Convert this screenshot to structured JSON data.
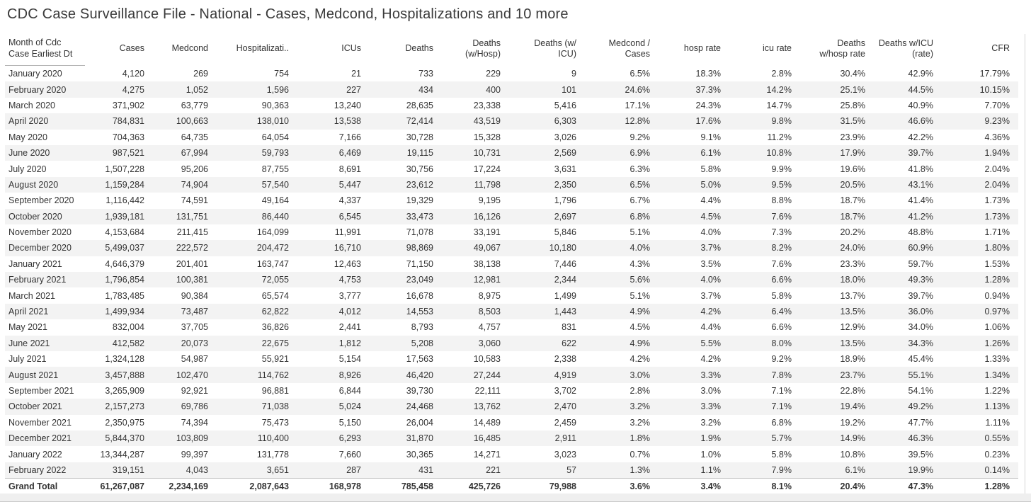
{
  "title": "CDC Case Surveillance File - National - Cases, Medcond, Hospitalizations and 10 more",
  "colors": {
    "row_banding": "#f3f3f3",
    "total_border": "#c4c4c4",
    "header_underline": "#b5b5b5",
    "text": "#333333",
    "title_text": "#3a3a3a"
  },
  "chart_data": {
    "type": "table",
    "title": "CDC Case Surveillance File - National - Cases, Medcond, Hospitalizations and 10 more",
    "columns": [
      "Month of Cdc\nCase Earliest Dt",
      "Cases",
      "Medcond",
      "Hospitalizati..",
      "ICUs",
      "Deaths",
      "Deaths\n(w/Hosp)",
      "Deaths (w/\nICU)",
      "Medcond /\nCases",
      "hosp rate",
      "icu rate",
      "Deaths\nw/hosp rate",
      "Deaths w/ICU\n(rate)",
      "CFR"
    ],
    "rows": [
      [
        "January 2020",
        "4,120",
        "269",
        "754",
        "21",
        "733",
        "229",
        "9",
        "6.5%",
        "18.3%",
        "2.8%",
        "30.4%",
        "42.9%",
        "17.79%"
      ],
      [
        "February 2020",
        "4,275",
        "1,052",
        "1,596",
        "227",
        "434",
        "400",
        "101",
        "24.6%",
        "37.3%",
        "14.2%",
        "25.1%",
        "44.5%",
        "10.15%"
      ],
      [
        "March 2020",
        "371,902",
        "63,779",
        "90,363",
        "13,240",
        "28,635",
        "23,338",
        "5,416",
        "17.1%",
        "24.3%",
        "14.7%",
        "25.8%",
        "40.9%",
        "7.70%"
      ],
      [
        "April 2020",
        "784,831",
        "100,663",
        "138,010",
        "13,538",
        "72,414",
        "43,519",
        "6,303",
        "12.8%",
        "17.6%",
        "9.8%",
        "31.5%",
        "46.6%",
        "9.23%"
      ],
      [
        "May 2020",
        "704,363",
        "64,735",
        "64,054",
        "7,166",
        "30,728",
        "15,328",
        "3,026",
        "9.2%",
        "9.1%",
        "11.2%",
        "23.9%",
        "42.2%",
        "4.36%"
      ],
      [
        "June 2020",
        "987,521",
        "67,994",
        "59,793",
        "6,469",
        "19,115",
        "10,731",
        "2,569",
        "6.9%",
        "6.1%",
        "10.8%",
        "17.9%",
        "39.7%",
        "1.94%"
      ],
      [
        "July 2020",
        "1,507,228",
        "95,206",
        "87,755",
        "8,691",
        "30,756",
        "17,224",
        "3,631",
        "6.3%",
        "5.8%",
        "9.9%",
        "19.6%",
        "41.8%",
        "2.04%"
      ],
      [
        "August 2020",
        "1,159,284",
        "74,904",
        "57,540",
        "5,447",
        "23,612",
        "11,798",
        "2,350",
        "6.5%",
        "5.0%",
        "9.5%",
        "20.5%",
        "43.1%",
        "2.04%"
      ],
      [
        "September 2020",
        "1,116,442",
        "74,591",
        "49,164",
        "4,337",
        "19,329",
        "9,195",
        "1,796",
        "6.7%",
        "4.4%",
        "8.8%",
        "18.7%",
        "41.4%",
        "1.73%"
      ],
      [
        "October 2020",
        "1,939,181",
        "131,751",
        "86,440",
        "6,545",
        "33,473",
        "16,126",
        "2,697",
        "6.8%",
        "4.5%",
        "7.6%",
        "18.7%",
        "41.2%",
        "1.73%"
      ],
      [
        "November 2020",
        "4,153,684",
        "211,415",
        "164,099",
        "11,991",
        "71,078",
        "33,191",
        "5,846",
        "5.1%",
        "4.0%",
        "7.3%",
        "20.2%",
        "48.8%",
        "1.71%"
      ],
      [
        "December 2020",
        "5,499,037",
        "222,572",
        "204,472",
        "16,710",
        "98,869",
        "49,067",
        "10,180",
        "4.0%",
        "3.7%",
        "8.2%",
        "24.0%",
        "60.9%",
        "1.80%"
      ],
      [
        "January 2021",
        "4,646,379",
        "201,401",
        "163,747",
        "12,463",
        "71,150",
        "38,138",
        "7,446",
        "4.3%",
        "3.5%",
        "7.6%",
        "23.3%",
        "59.7%",
        "1.53%"
      ],
      [
        "February 2021",
        "1,796,854",
        "100,381",
        "72,055",
        "4,753",
        "23,049",
        "12,981",
        "2,344",
        "5.6%",
        "4.0%",
        "6.6%",
        "18.0%",
        "49.3%",
        "1.28%"
      ],
      [
        "March 2021",
        "1,783,485",
        "90,384",
        "65,574",
        "3,777",
        "16,678",
        "8,975",
        "1,499",
        "5.1%",
        "3.7%",
        "5.8%",
        "13.7%",
        "39.7%",
        "0.94%"
      ],
      [
        "April 2021",
        "1,499,934",
        "73,487",
        "62,822",
        "4,012",
        "14,553",
        "8,503",
        "1,443",
        "4.9%",
        "4.2%",
        "6.4%",
        "13.5%",
        "36.0%",
        "0.97%"
      ],
      [
        "May 2021",
        "832,004",
        "37,705",
        "36,826",
        "2,441",
        "8,793",
        "4,757",
        "831",
        "4.5%",
        "4.4%",
        "6.6%",
        "12.9%",
        "34.0%",
        "1.06%"
      ],
      [
        "June 2021",
        "412,582",
        "20,073",
        "22,675",
        "1,812",
        "5,208",
        "3,060",
        "622",
        "4.9%",
        "5.5%",
        "8.0%",
        "13.5%",
        "34.3%",
        "1.26%"
      ],
      [
        "July 2021",
        "1,324,128",
        "54,987",
        "55,921",
        "5,154",
        "17,563",
        "10,583",
        "2,338",
        "4.2%",
        "4.2%",
        "9.2%",
        "18.9%",
        "45.4%",
        "1.33%"
      ],
      [
        "August 2021",
        "3,457,888",
        "102,470",
        "114,762",
        "8,926",
        "46,420",
        "27,244",
        "4,919",
        "3.0%",
        "3.3%",
        "7.8%",
        "23.7%",
        "55.1%",
        "1.34%"
      ],
      [
        "September 2021",
        "3,265,909",
        "92,921",
        "96,881",
        "6,844",
        "39,730",
        "22,111",
        "3,702",
        "2.8%",
        "3.0%",
        "7.1%",
        "22.8%",
        "54.1%",
        "1.22%"
      ],
      [
        "October 2021",
        "2,157,273",
        "69,786",
        "71,038",
        "5,024",
        "24,468",
        "13,762",
        "2,470",
        "3.2%",
        "3.3%",
        "7.1%",
        "19.4%",
        "49.2%",
        "1.13%"
      ],
      [
        "November 2021",
        "2,350,975",
        "74,394",
        "75,473",
        "5,150",
        "26,004",
        "14,489",
        "2,459",
        "3.2%",
        "3.2%",
        "6.8%",
        "19.2%",
        "47.7%",
        "1.11%"
      ],
      [
        "December 2021",
        "5,844,370",
        "103,809",
        "110,400",
        "6,293",
        "31,870",
        "16,485",
        "2,911",
        "1.8%",
        "1.9%",
        "5.7%",
        "14.9%",
        "46.3%",
        "0.55%"
      ],
      [
        "January 2022",
        "13,344,287",
        "99,397",
        "131,778",
        "7,660",
        "30,365",
        "14,271",
        "3,023",
        "0.7%",
        "1.0%",
        "5.8%",
        "10.8%",
        "39.5%",
        "0.23%"
      ],
      [
        "February 2022",
        "319,151",
        "4,043",
        "3,651",
        "287",
        "431",
        "221",
        "57",
        "1.3%",
        "1.1%",
        "7.9%",
        "6.1%",
        "19.9%",
        "0.14%"
      ]
    ],
    "grand_total": [
      "Grand Total",
      "61,267,087",
      "2,234,169",
      "2,087,643",
      "168,978",
      "785,458",
      "425,726",
      "79,988",
      "3.6%",
      "3.4%",
      "8.1%",
      "20.4%",
      "47.3%",
      "1.28%"
    ]
  }
}
